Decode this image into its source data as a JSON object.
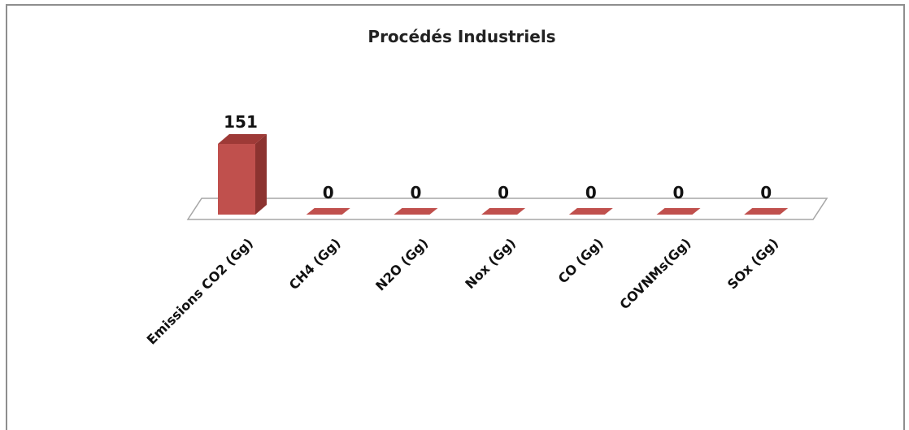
{
  "chart_data": {
    "type": "bar",
    "title": "Procédés  Industriels",
    "categories": [
      "Emissions CO2  (Gg)",
      "CH4 (Gg)",
      "N2O (Gg)",
      "Nox (Gg)",
      "CO (Gg)",
      "COVNMs(Gg)",
      "SOx (Gg)"
    ],
    "values": [
      151,
      0,
      0,
      0,
      0,
      0,
      0
    ],
    "data_labels": [
      "151",
      "0",
      "0",
      "0",
      "0",
      "0",
      "0"
    ],
    "xlabel": "",
    "ylabel": "",
    "ylim": [
      0,
      151
    ],
    "grid": false,
    "legend": "none",
    "style": "3d-column"
  },
  "colors": {
    "bar_front": "#c0504d",
    "bar_side": "#8c3330",
    "bar_top": "#9e3a37",
    "floor_stroke": "#a6a6a6",
    "frame_stroke": "#8e8e8e"
  }
}
